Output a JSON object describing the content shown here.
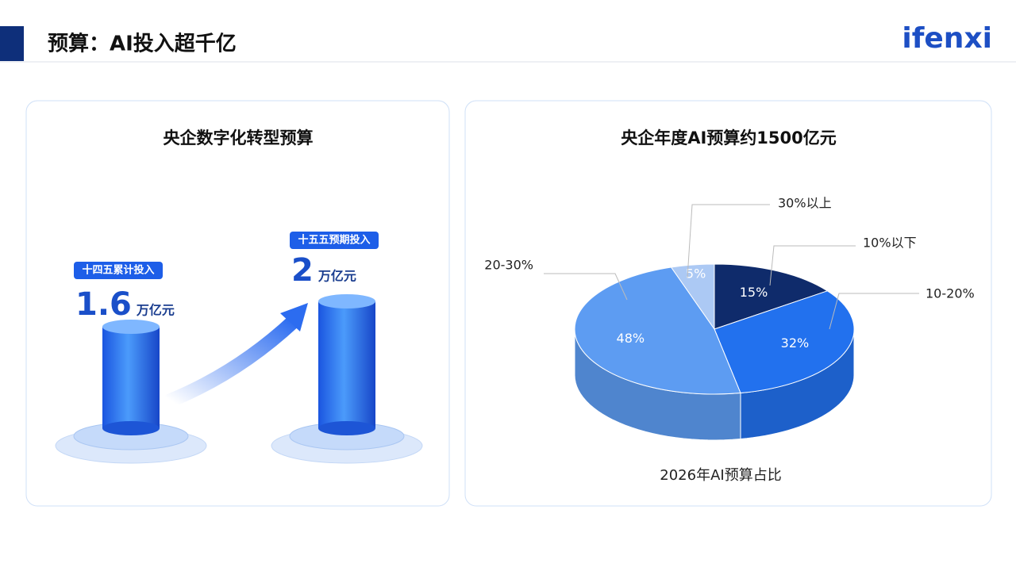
{
  "header": {
    "title": "预算：AI投入超千亿",
    "logo": "ifenxi"
  },
  "left_panel": {
    "title": "央企数字化转型预算",
    "items": [
      {
        "tag": "十四五累计投入",
        "value": 1.6,
        "unit": "万亿元"
      },
      {
        "tag": "十五五预期投入",
        "value": 2,
        "unit": "万亿元"
      }
    ]
  },
  "chart_data": {
    "type": "pie",
    "title": "央企年度AI预算约1500亿元",
    "caption": "2026年AI预算占比",
    "categories": [
      "10%以下",
      "10-20%",
      "20-30%",
      "30%以上"
    ],
    "values": [
      15,
      32,
      48,
      5
    ],
    "value_labels": [
      "15%",
      "32%",
      "48%",
      "5%"
    ],
    "colors": [
      "#0f2b6b",
      "#2271ee",
      "#5d9cf2",
      "#acc9f4"
    ]
  }
}
